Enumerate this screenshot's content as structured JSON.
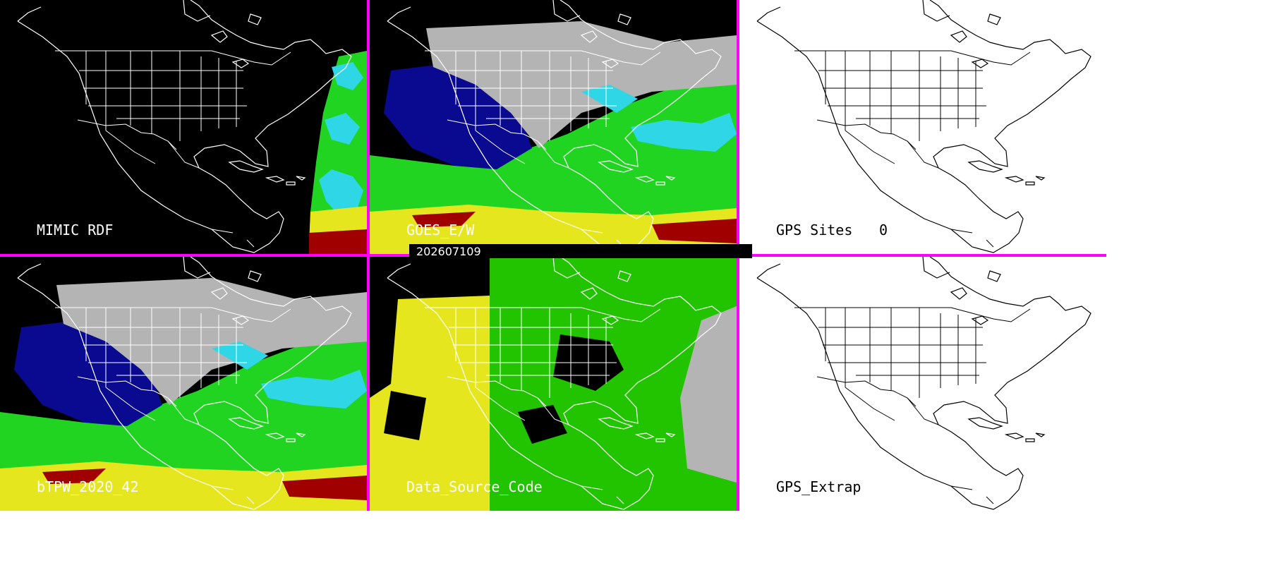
{
  "date_label": "202607109",
  "divider_color": "#ff00ff",
  "panels": [
    {
      "id": "mimic",
      "label": "MIMIC RDF",
      "background": "#000000",
      "coastline": "#ffffff"
    },
    {
      "id": "goes",
      "label": "GOES_E/W",
      "background": "#000000",
      "coastline": "#ffffff"
    },
    {
      "id": "gps-sites",
      "label": "GPS Sites",
      "count": "0",
      "background": "#ffffff",
      "coastline": "#000000"
    },
    {
      "id": "btpw",
      "label": "bTPW_2020_42",
      "background": "#000000",
      "coastline": "#ffffff"
    },
    {
      "id": "data-source",
      "label": "Data_Source_Code",
      "background": "#000000",
      "coastline": "#ffffff"
    },
    {
      "id": "gps-extrap",
      "label": "GPS_Extrap",
      "background": "#ffffff",
      "coastline": "#000000"
    }
  ],
  "colors": {
    "tpw_low": "#0a0a90",
    "tpw_mid": "#2ed6e6",
    "tpw_green": "#22d422",
    "tpw_yellow": "#e6e61e",
    "tpw_red": "#a00000",
    "tpw_gray": "#b4b4b4",
    "source_yellow": "#e6e61e",
    "source_green": "#22c400",
    "source_gray": "#b4b4b4"
  }
}
